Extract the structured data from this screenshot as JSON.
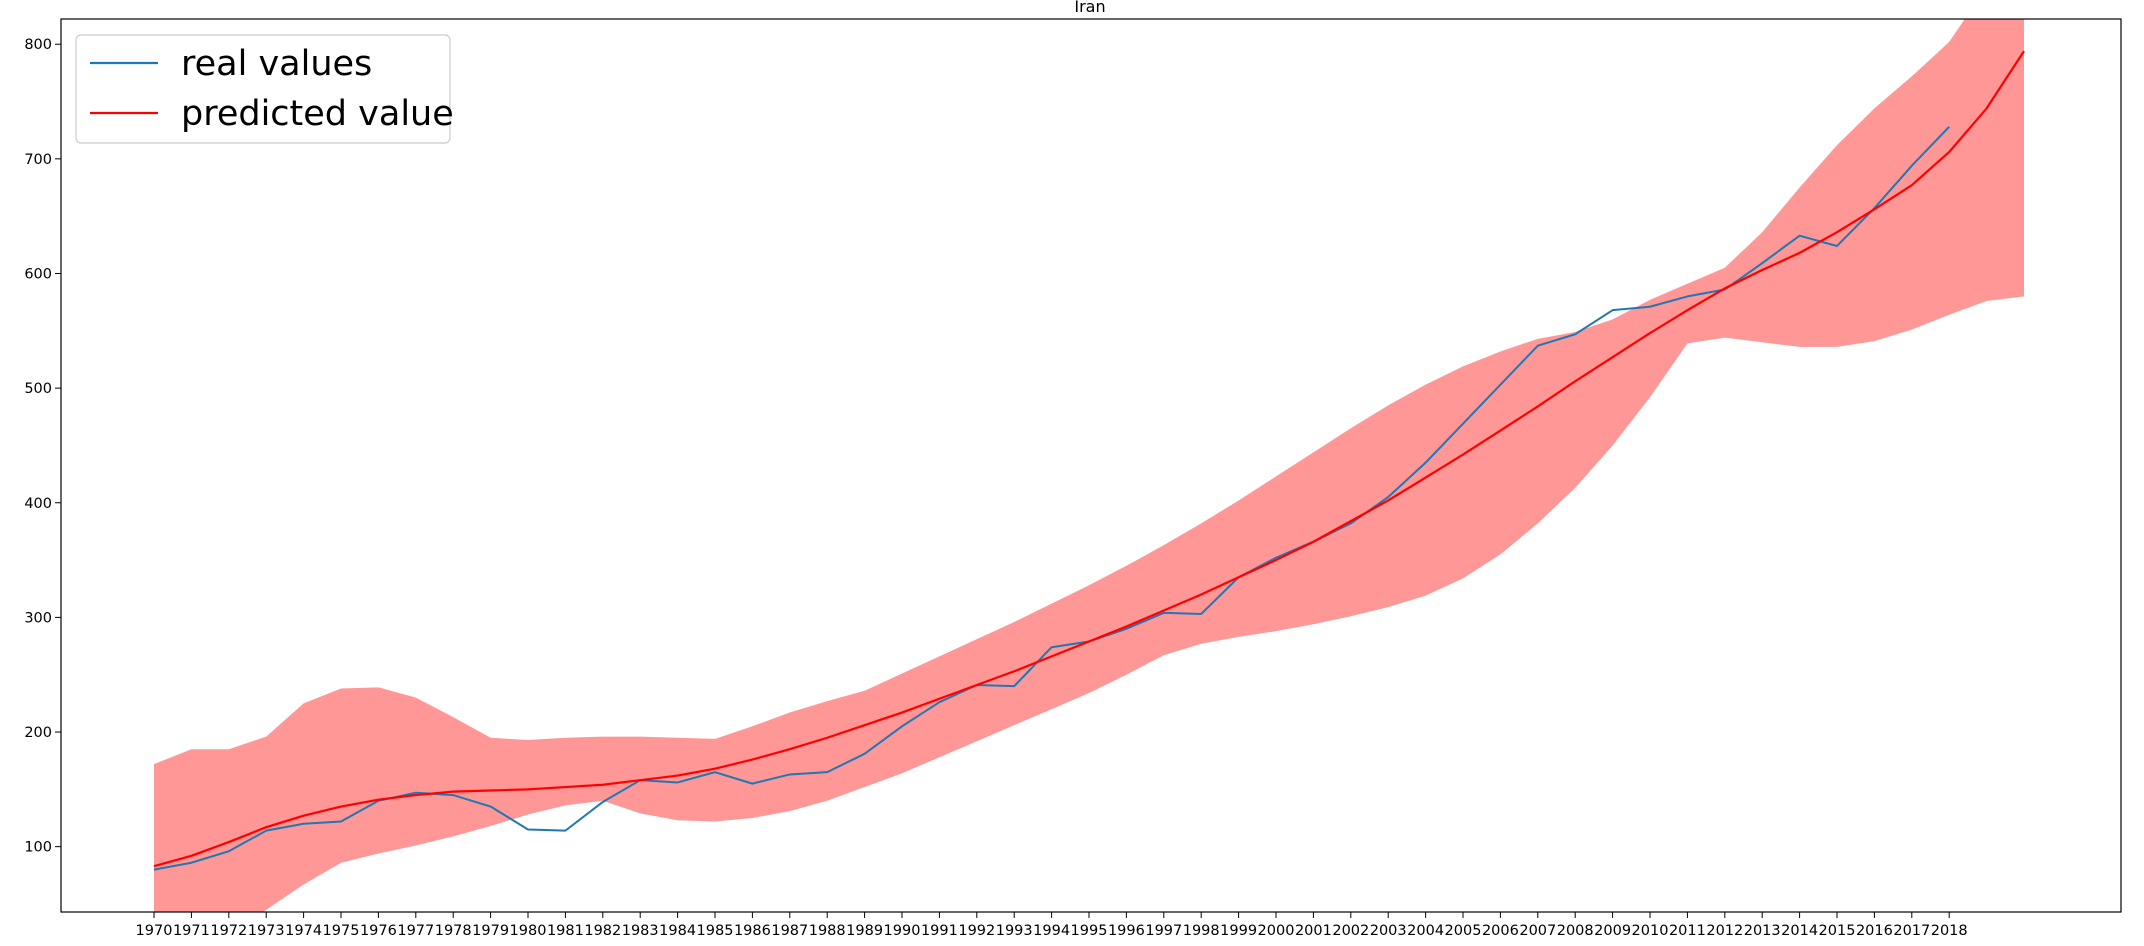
{
  "chart_data": {
    "type": "line",
    "title": "Iran",
    "xlabel": "",
    "ylabel": "",
    "ylim": [
      43,
      822
    ],
    "grid": false,
    "legend_position": "top-left",
    "x_ticks": [
      "1970",
      "1971",
      "1972",
      "1973",
      "1974",
      "1975",
      "1976",
      "1977",
      "1978",
      "1979",
      "1980",
      "1981",
      "1982",
      "1983",
      "1984",
      "1985",
      "1986",
      "1987",
      "1988",
      "1989",
      "1990",
      "1991",
      "1992",
      "1993",
      "1994",
      "1995",
      "1996",
      "1997",
      "1998",
      "1999",
      "2000",
      "2001",
      "2002",
      "2003",
      "2004",
      "2005",
      "2006",
      "2007",
      "2008",
      "2009",
      "2010",
      "2011",
      "2012",
      "2013",
      "2014",
      "2015",
      "2016",
      "2017",
      "2018"
    ],
    "y_ticks": [
      100,
      200,
      300,
      400,
      500,
      600,
      700,
      800
    ],
    "series": [
      {
        "name": "real values",
        "color": "#1f77b4",
        "x": [
          1970,
          1971,
          1972,
          1973,
          1974,
          1975,
          1976,
          1977,
          1978,
          1979,
          1980,
          1981,
          1982,
          1983,
          1984,
          1985,
          1986,
          1987,
          1988,
          1989,
          1990,
          1991,
          1992,
          1993,
          1994,
          1995,
          1996,
          1997,
          1998,
          1999,
          2000,
          2001,
          2002,
          2003,
          2004,
          2005,
          2006,
          2007,
          2008,
          2009,
          2010,
          2011,
          2012,
          2013,
          2014,
          2015,
          2016,
          2017,
          2018
        ],
        "values": [
          80,
          86,
          96,
          114,
          120,
          122,
          140,
          147,
          145,
          135,
          115,
          114,
          139,
          158,
          156,
          165,
          155,
          163,
          165,
          181,
          205,
          226,
          241,
          240,
          274,
          279,
          290,
          304,
          303,
          335,
          352,
          366,
          382,
          405,
          435,
          469,
          503,
          537,
          547,
          568,
          571,
          580,
          586,
          609,
          633,
          624,
          657,
          694,
          728
        ]
      },
      {
        "name": "predicted value",
        "color": "#ff0000",
        "x": [
          1970,
          1971,
          1972,
          1973,
          1974,
          1975,
          1976,
          1977,
          1978,
          1979,
          1980,
          1981,
          1982,
          1983,
          1984,
          1985,
          1986,
          1987,
          1988,
          1989,
          1990,
          1991,
          1992,
          1993,
          1994,
          1995,
          1996,
          1997,
          1998,
          1999,
          2000,
          2001,
          2002,
          2003,
          2004,
          2005,
          2006,
          2007,
          2008,
          2009,
          2010,
          2011,
          2012,
          2013,
          2014,
          2015,
          2016,
          2017,
          2018,
          2019,
          2020
        ],
        "values": [
          83,
          92,
          104,
          117,
          127,
          135,
          141,
          145,
          148,
          149,
          150,
          152,
          154,
          158,
          162,
          168,
          176,
          185,
          195,
          206,
          217,
          229,
          241,
          253,
          266,
          279,
          292,
          306,
          320,
          335,
          350,
          366,
          384,
          402,
          422,
          442,
          463,
          484,
          506,
          527,
          548,
          568,
          587,
          603,
          618,
          636,
          656,
          677,
          706,
          744,
          794
        ]
      }
    ],
    "confidence_band": {
      "color": "#ff6666",
      "x": [
        1970,
        1971,
        1972,
        1973,
        1974,
        1975,
        1976,
        1977,
        1978,
        1979,
        1980,
        1981,
        1982,
        1983,
        1984,
        1985,
        1986,
        1987,
        1988,
        1989,
        1990,
        1991,
        1992,
        1993,
        1994,
        1995,
        1996,
        1997,
        1998,
        1999,
        2000,
        2001,
        2002,
        2003,
        2004,
        2005,
        2006,
        2007,
        2008,
        2009,
        2010,
        2011,
        2012,
        2013,
        2014,
        2015,
        2016,
        2017,
        2018,
        2019,
        2020
      ],
      "upper": [
        172,
        185,
        185,
        196,
        225,
        238,
        239,
        230,
        213,
        195,
        193,
        195,
        196,
        196,
        195,
        194,
        205,
        217,
        227,
        236,
        251,
        266,
        281,
        296,
        312,
        328,
        345,
        363,
        382,
        402,
        423,
        444,
        465,
        485,
        503,
        519,
        532,
        543,
        549,
        560,
        577,
        591,
        605,
        636,
        675,
        712,
        744,
        772,
        802,
        850,
        900
      ],
      "lower": [
        43,
        30,
        20,
        45,
        67,
        86,
        94,
        101,
        109,
        118,
        128,
        136,
        140,
        129,
        123,
        122,
        125,
        131,
        140,
        152,
        164,
        178,
        192,
        206,
        220,
        234,
        250,
        267,
        277,
        283,
        288,
        294,
        301,
        309,
        319,
        334,
        355,
        382,
        413,
        450,
        492,
        539,
        544,
        540,
        536,
        536,
        541,
        551,
        564,
        576,
        580
      ]
    }
  }
}
